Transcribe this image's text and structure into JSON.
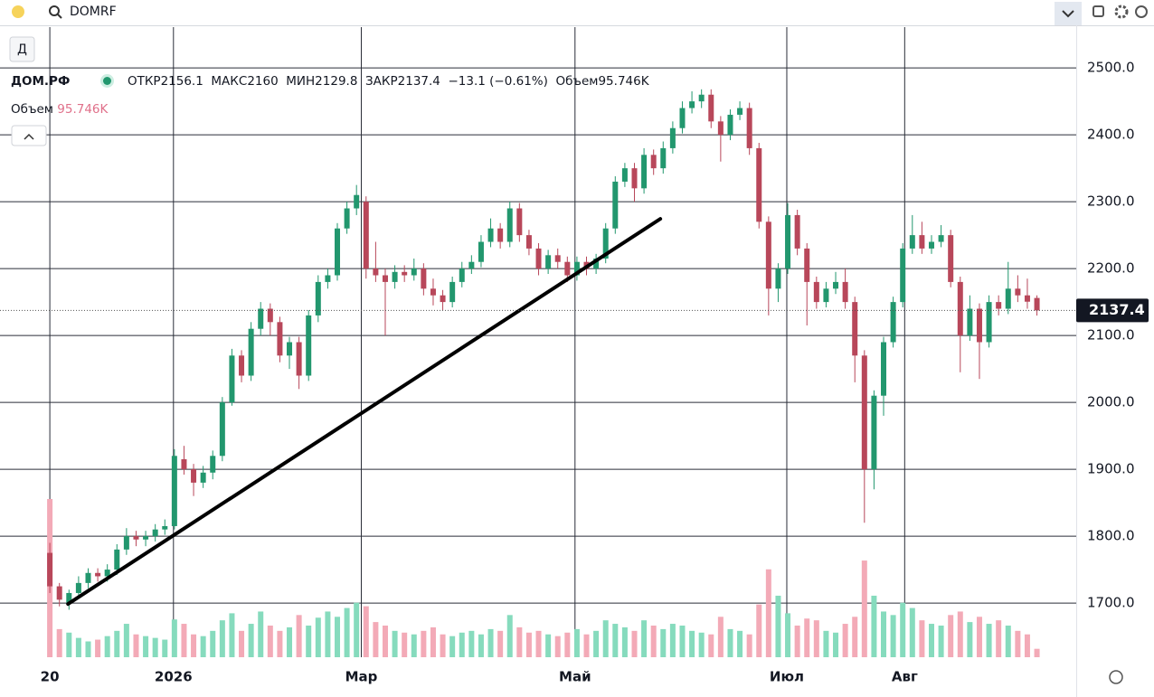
{
  "search": {
    "query": "DOMRF"
  },
  "interval_button": "Д",
  "chart_data": {
    "type": "candlestick",
    "title": "ДОМ.РФ",
    "legend": {
      "open_label": "ОТКР",
      "high_label": "МАКС",
      "low_label": "МИН",
      "close_label": "ЗАКР",
      "change_label": "−13.1 (−0.61%)",
      "volume_label": "Объем",
      "volume_name": "Объем",
      "last_volume_label": "95.746K"
    },
    "up_color": "#22976e",
    "down_color": "#b8475a",
    "volume_up_color": "#86dbbd",
    "volume_down_color": "#f3aab7",
    "open": [
      1775,
      1725,
      1700,
      1715,
      1730,
      1745,
      1740,
      1750,
      1780,
      1800,
      1795,
      1800,
      1810,
      1815,
      1915,
      1900,
      1880,
      1895,
      1920,
      2000,
      2070,
      2040,
      2110,
      2140,
      2120,
      2070,
      2090,
      2040,
      2130,
      2180,
      2190,
      2260,
      2290,
      2300,
      2200,
      2190,
      2180,
      2195,
      2190,
      2200,
      2170,
      2160,
      2150,
      2180,
      2200,
      2210,
      2240,
      2260,
      2240,
      2290,
      2250,
      2230,
      2200,
      2220,
      2210,
      2190,
      2210,
      2200,
      2215,
      2260,
      2330,
      2350,
      2320,
      2370,
      2350,
      2380,
      2410,
      2440,
      2450,
      2460,
      2420,
      2400,
      2430,
      2440,
      2380,
      2270,
      2170,
      2200,
      2280,
      2230,
      2180,
      2150,
      2170,
      2180,
      2150,
      2070,
      1900,
      2010,
      2090,
      2150,
      2230,
      2250,
      2230,
      2240,
      2250,
      2180,
      2100,
      2140,
      2090,
      2150,
      2140,
      2170,
      2160,
      2156.1
    ],
    "high": [
      1790,
      1730,
      1720,
      1740,
      1752,
      1752,
      1758,
      1788,
      1812,
      1808,
      1808,
      1818,
      1825,
      1930,
      1935,
      1908,
      1905,
      1928,
      2008,
      2080,
      2078,
      2120,
      2150,
      2148,
      2128,
      2098,
      2098,
      2138,
      2190,
      2200,
      2268,
      2300,
      2325,
      2308,
      2240,
      2200,
      2205,
      2205,
      2215,
      2208,
      2185,
      2168,
      2188,
      2210,
      2220,
      2250,
      2275,
      2268,
      2300,
      2298,
      2258,
      2238,
      2228,
      2230,
      2218,
      2218,
      2218,
      2222,
      2268,
      2338,
      2358,
      2358,
      2380,
      2378,
      2390,
      2420,
      2450,
      2465,
      2468,
      2468,
      2428,
      2438,
      2450,
      2448,
      2388,
      2278,
      2208,
      2298,
      2288,
      2238,
      2188,
      2180,
      2195,
      2200,
      2158,
      2078,
      2018,
      2098,
      2158,
      2238,
      2280,
      2270,
      2250,
      2265,
      2258,
      2188,
      2160,
      2148,
      2160,
      2160,
      2210,
      2190,
      2185,
      2160
    ],
    "low": [
      1715,
      1695,
      1690,
      1708,
      1722,
      1732,
      1732,
      1742,
      1772,
      1785,
      1785,
      1792,
      1802,
      1810,
      1892,
      1860,
      1872,
      1885,
      1912,
      1995,
      2030,
      2032,
      2100,
      2100,
      2060,
      2050,
      2020,
      2032,
      2120,
      2170,
      2182,
      2252,
      2280,
      2185,
      2180,
      2100,
      2170,
      2180,
      2182,
      2160,
      2145,
      2138,
      2142,
      2172,
      2192,
      2202,
      2232,
      2230,
      2232,
      2240,
      2220,
      2190,
      2192,
      2200,
      2180,
      2182,
      2190,
      2192,
      2208,
      2252,
      2322,
      2300,
      2312,
      2340,
      2342,
      2372,
      2402,
      2432,
      2440,
      2410,
      2360,
      2392,
      2422,
      2370,
      2260,
      2130,
      2150,
      2192,
      2220,
      2115,
      2140,
      2142,
      2162,
      2140,
      2030,
      1820,
      1870,
      1980,
      2082,
      2142,
      2222,
      2222,
      2222,
      2232,
      2172,
      2045,
      2092,
      2035,
      2082,
      2130,
      2132,
      2150,
      2140,
      2129.8
    ],
    "close": [
      1725,
      1705,
      1715,
      1730,
      1745,
      1740,
      1750,
      1780,
      1800,
      1795,
      1800,
      1810,
      1815,
      1920,
      1900,
      1880,
      1895,
      1920,
      2000,
      2070,
      2040,
      2110,
      2140,
      2120,
      2070,
      2090,
      2040,
      2130,
      2180,
      2190,
      2260,
      2290,
      2310,
      2200,
      2190,
      2180,
      2195,
      2190,
      2200,
      2170,
      2160,
      2150,
      2180,
      2200,
      2210,
      2240,
      2260,
      2240,
      2290,
      2250,
      2230,
      2200,
      2220,
      2210,
      2190,
      2210,
      2200,
      2215,
      2260,
      2330,
      2350,
      2320,
      2370,
      2350,
      2380,
      2410,
      2440,
      2450,
      2460,
      2420,
      2400,
      2430,
      2440,
      2380,
      2270,
      2170,
      2200,
      2280,
      2230,
      2180,
      2150,
      2170,
      2180,
      2150,
      2070,
      1900,
      2010,
      2090,
      2150,
      2230,
      2250,
      2230,
      2240,
      2250,
      2180,
      2100,
      2140,
      2090,
      2150,
      2140,
      2170,
      2160,
      2150.5,
      2137.4
    ],
    "volume": [
      1800,
      320,
      280,
      220,
      180,
      200,
      240,
      300,
      380,
      260,
      240,
      220,
      200,
      430,
      380,
      260,
      240,
      300,
      420,
      500,
      300,
      380,
      520,
      360,
      300,
      340,
      480,
      360,
      450,
      520,
      460,
      560,
      620,
      580,
      400,
      360,
      300,
      280,
      260,
      300,
      340,
      260,
      240,
      280,
      300,
      260,
      320,
      300,
      480,
      340,
      280,
      300,
      260,
      240,
      280,
      320,
      260,
      300,
      420,
      380,
      340,
      300,
      420,
      360,
      320,
      380,
      360,
      300,
      280,
      260,
      460,
      320,
      300,
      260,
      600,
      1000,
      700,
      500,
      360,
      440,
      420,
      300,
      280,
      380,
      460,
      1100,
      700,
      520,
      480,
      620,
      560,
      420,
      380,
      360,
      480,
      520,
      400,
      460,
      380,
      420,
      360,
      300,
      260,
      95.746
    ],
    "ylim": [
      1619,
      2561
    ],
    "yticks": [
      {
        "value": 1700,
        "label": "1700.0"
      },
      {
        "value": 1800,
        "label": "1800.0"
      },
      {
        "value": 1900,
        "label": "1900.0"
      },
      {
        "value": 2000,
        "label": "2000.0"
      },
      {
        "value": 2100,
        "label": "2100.0"
      },
      {
        "value": 2200,
        "label": "2200.0"
      },
      {
        "value": 2300,
        "label": "2300.0"
      },
      {
        "value": 2400,
        "label": "2400.0"
      },
      {
        "value": 2500,
        "label": "2500.0"
      }
    ],
    "xlim": [
      -5.2,
      107.1
    ],
    "xticks": [
      {
        "value": 0,
        "label": "20"
      },
      {
        "value": 12.9,
        "label": "2026"
      },
      {
        "value": 32.5,
        "label": "Мар"
      },
      {
        "value": 54.8,
        "label": "Май"
      },
      {
        "value": 76.9,
        "label": "Июл"
      },
      {
        "value": 89.2,
        "label": "Авг"
      }
    ],
    "trendline": {
      "x": [
        1.9,
        63.7
      ],
      "y": [
        1698.6,
        2274.3
      ]
    },
    "grid": true
  }
}
